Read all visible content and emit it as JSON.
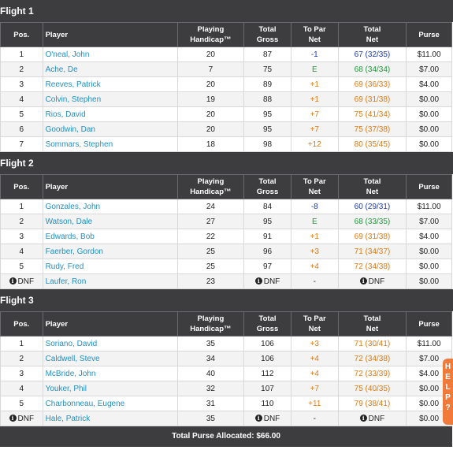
{
  "columns": {
    "pos": "Pos.",
    "player": "Player",
    "handicap_l1": "Playing",
    "handicap_l2": "Handicap™",
    "gross_l1": "Total",
    "gross_l2": "Gross",
    "topar_l1": "To Par",
    "topar_l2": "Net",
    "net_l1": "Total",
    "net_l2": "Net",
    "purse": "Purse"
  },
  "flights": [
    {
      "title": "Flight 1",
      "rows": [
        {
          "pos": "1",
          "player": "O'neal, John",
          "handicap": "20",
          "gross": "87",
          "topar": "-1",
          "topar_color": "blue",
          "net": "67 (32/35)",
          "net_color": "blue",
          "purse": "$11.00"
        },
        {
          "pos": "2",
          "player": "Ache, De",
          "handicap": "7",
          "gross": "75",
          "topar": "E",
          "topar_color": "green",
          "net": "68 (34/34)",
          "net_color": "green",
          "purse": "$7.00"
        },
        {
          "pos": "3",
          "player": "Reeves, Patrick",
          "handicap": "20",
          "gross": "89",
          "topar": "+1",
          "topar_color": "orange",
          "net": "69 (36/33)",
          "net_color": "orange",
          "purse": "$4.00"
        },
        {
          "pos": "4",
          "player": "Colvin, Stephen",
          "handicap": "19",
          "gross": "88",
          "topar": "+1",
          "topar_color": "orange",
          "net": "69 (31/38)",
          "net_color": "orange",
          "purse": "$0.00"
        },
        {
          "pos": "5",
          "player": "Rios, David",
          "handicap": "20",
          "gross": "95",
          "topar": "+7",
          "topar_color": "orange",
          "net": "75 (41/34)",
          "net_color": "orange",
          "purse": "$0.00"
        },
        {
          "pos": "6",
          "player": "Goodwin, Dan",
          "handicap": "20",
          "gross": "95",
          "topar": "+7",
          "topar_color": "orange",
          "net": "75 (37/38)",
          "net_color": "orange",
          "purse": "$0.00"
        },
        {
          "pos": "7",
          "player": "Sommars, Stephen",
          "handicap": "18",
          "gross": "98",
          "topar": "+12",
          "topar_color": "orange",
          "net": "80 (35/45)",
          "net_color": "orange",
          "purse": "$0.00"
        }
      ]
    },
    {
      "title": "Flight 2",
      "rows": [
        {
          "pos": "1",
          "player": "Gonzales, John",
          "handicap": "24",
          "gross": "84",
          "topar": "-8",
          "topar_color": "blue",
          "net": "60 (29/31)",
          "net_color": "blue",
          "purse": "$11.00"
        },
        {
          "pos": "2",
          "player": "Watson, Dale",
          "handicap": "27",
          "gross": "95",
          "topar": "E",
          "topar_color": "green",
          "net": "68 (33/35)",
          "net_color": "green",
          "purse": "$7.00"
        },
        {
          "pos": "3",
          "player": "Edwards, Bob",
          "handicap": "22",
          "gross": "91",
          "topar": "+1",
          "topar_color": "orange",
          "net": "69 (31/38)",
          "net_color": "orange",
          "purse": "$4.00"
        },
        {
          "pos": "4",
          "player": "Faerber, Gordon",
          "handicap": "25",
          "gross": "96",
          "topar": "+3",
          "topar_color": "orange",
          "net": "71 (34/37)",
          "net_color": "orange",
          "purse": "$0.00"
        },
        {
          "pos": "5",
          "player": "Rudy, Fred",
          "handicap": "25",
          "gross": "97",
          "topar": "+4",
          "topar_color": "orange",
          "net": "72 (34/38)",
          "net_color": "orange",
          "purse": "$0.00"
        },
        {
          "pos": "DNF",
          "pos_icon": true,
          "player": "Laufer, Ron",
          "handicap": "23",
          "gross": "DNF",
          "gross_icon": true,
          "topar": "-",
          "topar_color": "",
          "net": "DNF",
          "net_icon": true,
          "net_color": "",
          "purse": "$0.00"
        }
      ]
    },
    {
      "title": "Flight 3",
      "rows": [
        {
          "pos": "1",
          "player": "Soriano, David",
          "handicap": "35",
          "gross": "106",
          "topar": "+3",
          "topar_color": "orange",
          "net": "71 (30/41)",
          "net_color": "orange",
          "purse": "$11.00"
        },
        {
          "pos": "2",
          "player": "Caldwell, Steve",
          "handicap": "34",
          "gross": "106",
          "topar": "+4",
          "topar_color": "orange",
          "net": "72 (34/38)",
          "net_color": "orange",
          "purse": "$7.00"
        },
        {
          "pos": "3",
          "player": "McBride, John",
          "handicap": "40",
          "gross": "112",
          "topar": "+4",
          "topar_color": "orange",
          "net": "72 (33/39)",
          "net_color": "orange",
          "purse": "$4.00"
        },
        {
          "pos": "4",
          "player": "Youker, Phil",
          "handicap": "32",
          "gross": "107",
          "topar": "+7",
          "topar_color": "orange",
          "net": "75 (40/35)",
          "net_color": "orange",
          "purse": "$0.00"
        },
        {
          "pos": "5",
          "player": "Charbonneau, Eugene",
          "handicap": "31",
          "gross": "110",
          "topar": "+11",
          "topar_color": "orange",
          "net": "79 (38/41)",
          "net_color": "orange",
          "purse": "$0.00"
        },
        {
          "pos": "DNF",
          "pos_icon": true,
          "player": "Hale, Patrick",
          "handicap": "35",
          "gross": "DNF",
          "gross_icon": true,
          "topar": "-",
          "topar_color": "",
          "net": "DNF",
          "net_icon": true,
          "net_color": "",
          "purse": "$0.00"
        }
      ]
    }
  ],
  "footer": "Total Purse Allocated: $66.00",
  "help_tab": {
    "letters": [
      "H",
      "E",
      "L",
      "P",
      "?"
    ]
  },
  "colors": {
    "header_bg": "#3d3d40",
    "player_link": "#1f8fc2",
    "under_par": "#1a3bb0",
    "even_par": "#1e9a38",
    "over_par": "#e07a12",
    "help": "#f07a3a"
  },
  "icons": {
    "info": "info-circle-icon"
  }
}
